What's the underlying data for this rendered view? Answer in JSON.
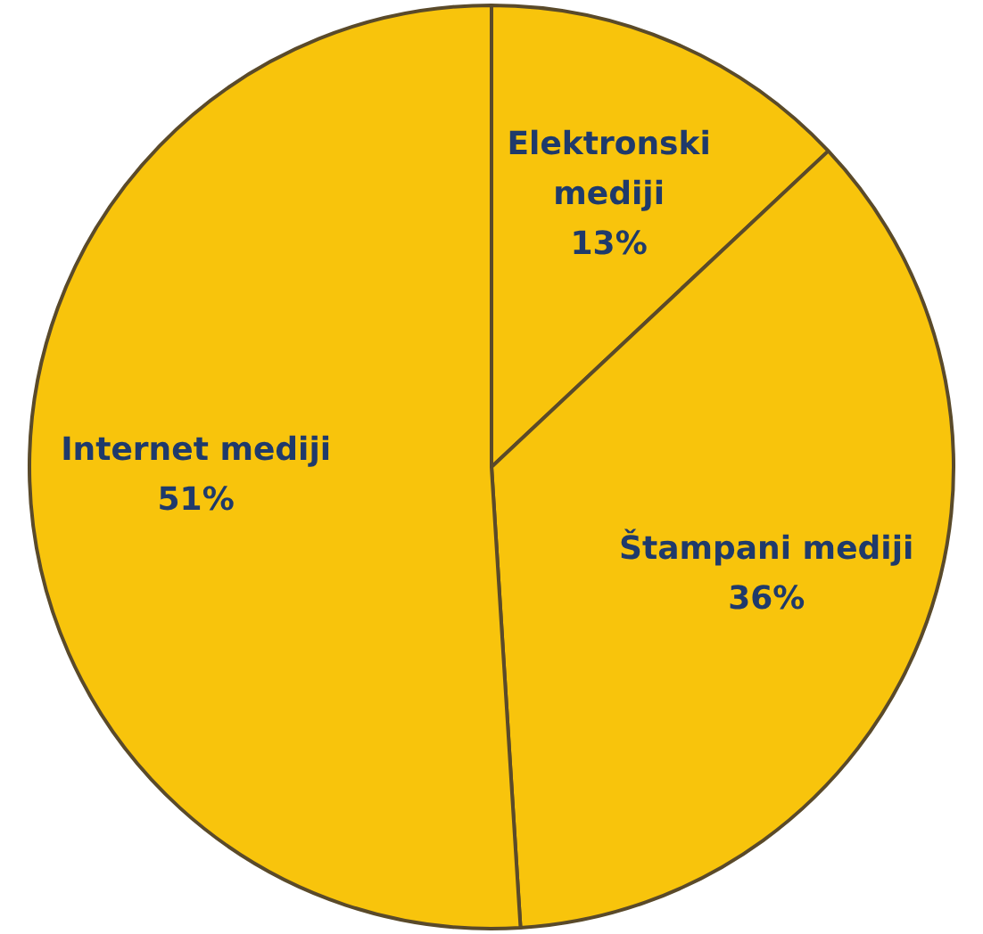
{
  "chart_data": {
    "type": "pie",
    "categories": [
      "Elektronski mediji",
      "Štampani mediji",
      "Internet mediji"
    ],
    "values": [
      13,
      36,
      51
    ],
    "value_labels": [
      "13%",
      "36%",
      "51%"
    ],
    "colors": [
      "#f8c40c",
      "#f8c40c",
      "#f8c40c"
    ],
    "legend": false
  }
}
